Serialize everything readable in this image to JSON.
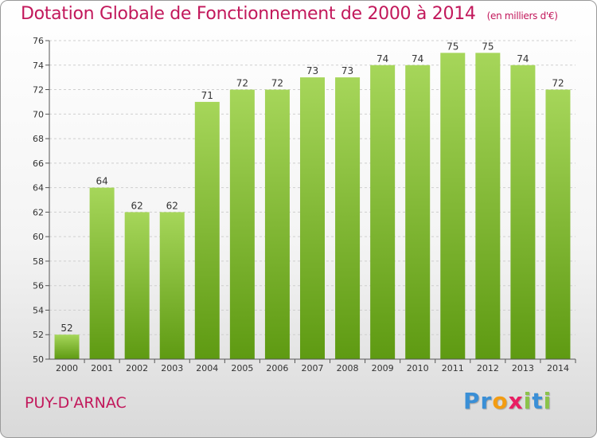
{
  "chart_data": {
    "type": "bar",
    "title": "Dotation Globale de Fonctionnement de 2000 à 2014",
    "unit": "(en milliers d'€)",
    "categories": [
      "2000",
      "2001",
      "2002",
      "2003",
      "2004",
      "2005",
      "2006",
      "2007",
      "2008",
      "2009",
      "2010",
      "2011",
      "2012",
      "2013",
      "2014"
    ],
    "values": [
      52,
      64,
      62,
      62,
      71,
      72,
      72,
      73,
      73,
      74,
      74,
      75,
      75,
      74,
      72
    ],
    "ylim": [
      50,
      76
    ],
    "yticks": [
      50,
      52,
      54,
      56,
      58,
      60,
      62,
      64,
      66,
      68,
      70,
      72,
      74,
      76
    ],
    "grid": true,
    "bar_color": "#7cb82f"
  },
  "footer": {
    "commune": "PUY-D'ARNAC"
  },
  "logo": {
    "letters": [
      "P",
      "r",
      "o",
      "x",
      "i",
      "t",
      "i"
    ],
    "colors": [
      "#3a8fd6",
      "#3a8fd6",
      "#f39c12",
      "#e91e63",
      "#8bc34a",
      "#3a8fd6",
      "#8bc34a"
    ]
  }
}
